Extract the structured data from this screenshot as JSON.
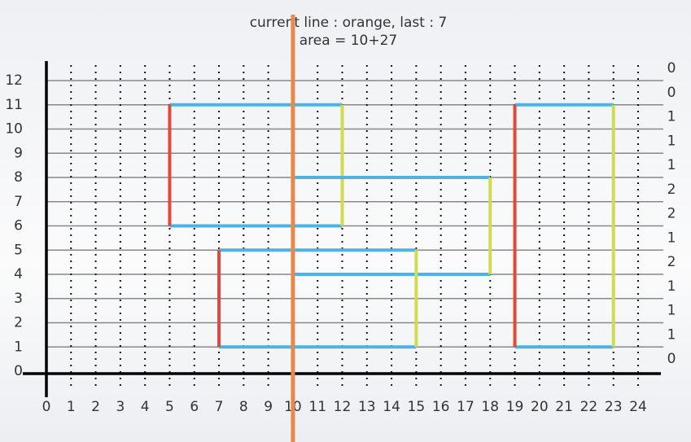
{
  "chart_data": {
    "type": "sweep",
    "title": "current line : orange, last : 7",
    "subtitle": "area = 10+27",
    "xlim": [
      0,
      24
    ],
    "ylim": [
      0,
      12
    ],
    "xticks": [
      0,
      1,
      2,
      3,
      4,
      5,
      6,
      7,
      8,
      9,
      10,
      11,
      12,
      13,
      14,
      15,
      16,
      17,
      18,
      19,
      20,
      21,
      22,
      23,
      24
    ],
    "yticks": [
      0,
      1,
      2,
      3,
      4,
      5,
      6,
      7,
      8,
      9,
      10,
      11,
      12
    ],
    "grid": true,
    "sweep_x": 10,
    "sweep_color": "#e8894a",
    "segments": [
      {
        "x1": 5,
        "x2": 12,
        "y1": 11,
        "y2": 11,
        "color": "#4db3e6"
      },
      {
        "x1": 5,
        "x2": 12,
        "y1": 6,
        "y2": 6,
        "color": "#4db3e6"
      },
      {
        "x1": 5,
        "x2": 5,
        "y1": 6,
        "y2": 11,
        "color": "#e0493c"
      },
      {
        "x1": 12,
        "x2": 12,
        "y1": 6,
        "y2": 11,
        "color": "#cfdc52"
      },
      {
        "x1": 10,
        "x2": 18,
        "y1": 8,
        "y2": 8,
        "color": "#4db3e6"
      },
      {
        "x1": 10,
        "x2": 18,
        "y1": 4,
        "y2": 4,
        "color": "#4db3e6"
      },
      {
        "x1": 18,
        "x2": 18,
        "y1": 4,
        "y2": 8,
        "color": "#cfdc52"
      },
      {
        "x1": 7,
        "x2": 15,
        "y1": 5,
        "y2": 5,
        "color": "#4db3e6"
      },
      {
        "x1": 7,
        "x2": 15,
        "y1": 1,
        "y2": 1,
        "color": "#4db3e6"
      },
      {
        "x1": 7,
        "x2": 7,
        "y1": 1,
        "y2": 5,
        "color": "#e0493c"
      },
      {
        "x1": 15,
        "x2": 15,
        "y1": 1,
        "y2": 5,
        "color": "#cfdc52"
      },
      {
        "x1": 19,
        "x2": 23,
        "y1": 11,
        "y2": 11,
        "color": "#4db3e6"
      },
      {
        "x1": 19,
        "x2": 23,
        "y1": 1,
        "y2": 1,
        "color": "#4db3e6"
      },
      {
        "x1": 19,
        "x2": 19,
        "y1": 1,
        "y2": 11,
        "color": "#e0493c"
      },
      {
        "x1": 23,
        "x2": 23,
        "y1": 1,
        "y2": 11,
        "color": "#cfdc52"
      }
    ],
    "coverage": [
      0,
      1,
      1,
      1,
      2,
      1,
      2,
      2,
      1,
      1,
      1,
      0,
      0
    ]
  }
}
